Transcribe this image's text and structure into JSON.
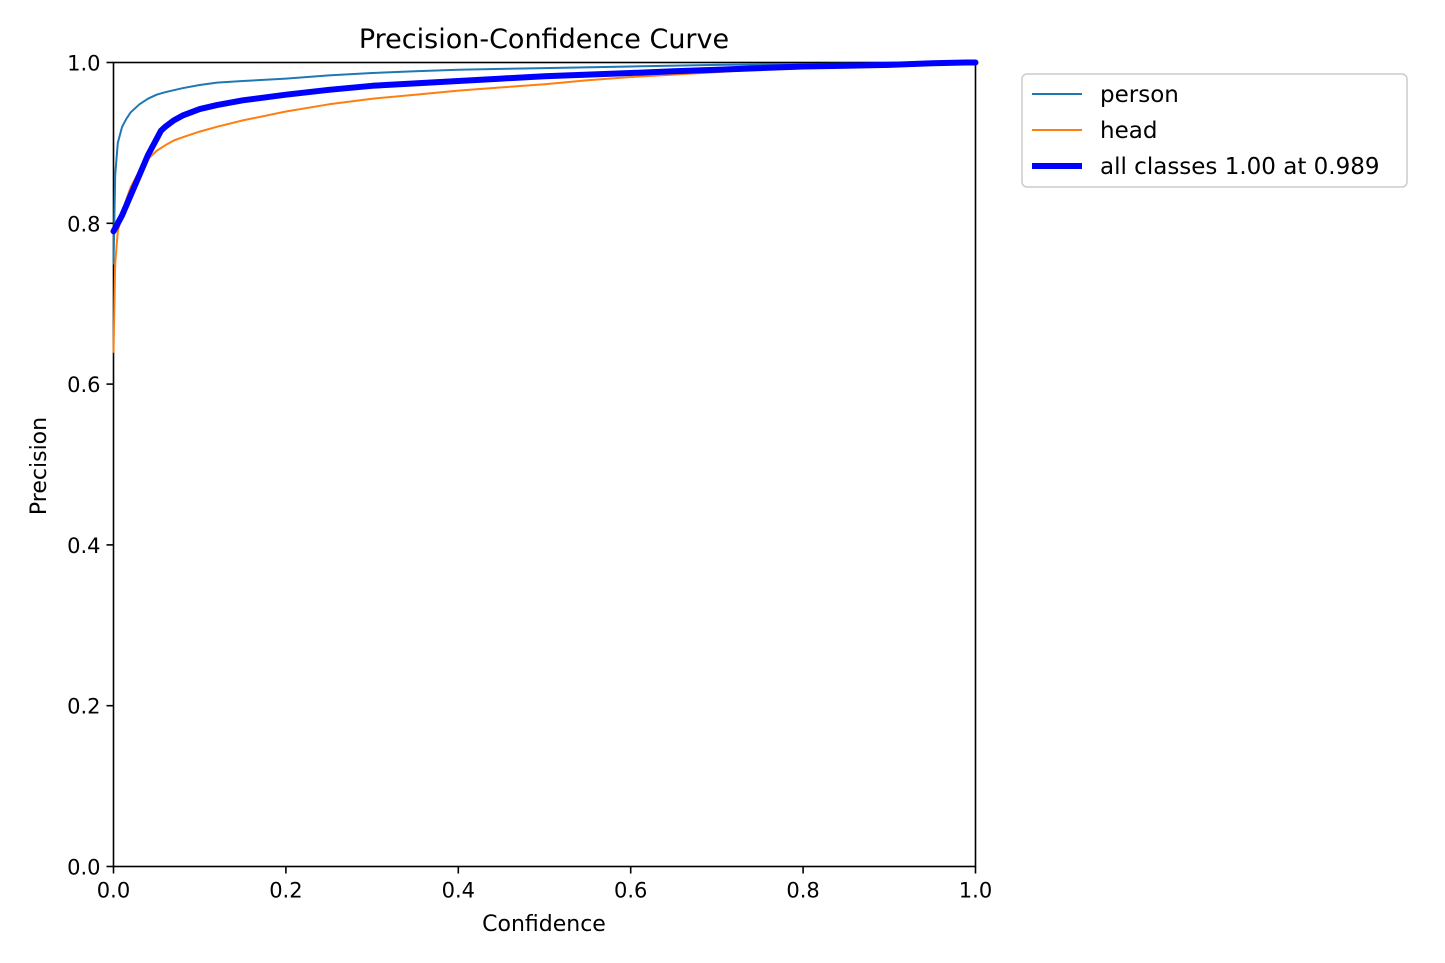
{
  "chart_data": {
    "type": "line",
    "title": "Precision-Confidence Curve",
    "xlabel": "Confidence",
    "ylabel": "Precision",
    "xlim": [
      0.0,
      1.0
    ],
    "ylim": [
      0.0,
      1.0
    ],
    "xticks": [
      "0.0",
      "0.2",
      "0.4",
      "0.6",
      "0.8",
      "1.0"
    ],
    "yticks": [
      "0.0",
      "0.2",
      "0.4",
      "0.6",
      "0.8",
      "1.0"
    ],
    "grid": false,
    "legend_position": "outside-top-right",
    "series": [
      {
        "name": "person",
        "color": "#1f77b4",
        "x": [
          0.0,
          0.002,
          0.005,
          0.01,
          0.015,
          0.02,
          0.03,
          0.04,
          0.05,
          0.06,
          0.08,
          0.1,
          0.12,
          0.15,
          0.2,
          0.25,
          0.3,
          0.35,
          0.4,
          0.45,
          0.5,
          0.6,
          0.7,
          0.8,
          0.9,
          1.0
        ],
        "y": [
          0.75,
          0.86,
          0.9,
          0.92,
          0.93,
          0.938,
          0.948,
          0.955,
          0.96,
          0.963,
          0.968,
          0.972,
          0.975,
          0.977,
          0.98,
          0.984,
          0.987,
          0.989,
          0.991,
          0.992,
          0.993,
          0.995,
          0.997,
          0.998,
          0.999,
          1.0
        ]
      },
      {
        "name": "head",
        "color": "#ff7f0e",
        "x": [
          0.0,
          0.002,
          0.005,
          0.01,
          0.015,
          0.02,
          0.03,
          0.04,
          0.05,
          0.06,
          0.07,
          0.08,
          0.1,
          0.12,
          0.15,
          0.2,
          0.25,
          0.3,
          0.35,
          0.4,
          0.45,
          0.5,
          0.55,
          0.6,
          0.65,
          0.7,
          0.73
        ],
        "y": [
          0.64,
          0.75,
          0.79,
          0.81,
          0.83,
          0.845,
          0.865,
          0.88,
          0.89,
          0.897,
          0.903,
          0.907,
          0.914,
          0.92,
          0.928,
          0.939,
          0.948,
          0.955,
          0.96,
          0.965,
          0.969,
          0.973,
          0.978,
          0.982,
          0.985,
          0.988,
          0.99
        ]
      },
      {
        "name": "all classes 1.00 at 0.989",
        "color": "#0000ff",
        "x": [
          0.0,
          0.01,
          0.02,
          0.03,
          0.04,
          0.05,
          0.055,
          0.06,
          0.07,
          0.08,
          0.1,
          0.12,
          0.15,
          0.2,
          0.25,
          0.3,
          0.35,
          0.4,
          0.45,
          0.5,
          0.55,
          0.6,
          0.65,
          0.7,
          0.75,
          0.8,
          0.85,
          0.9,
          0.95,
          0.989,
          1.0
        ],
        "y": [
          0.79,
          0.81,
          0.835,
          0.86,
          0.885,
          0.905,
          0.915,
          0.92,
          0.928,
          0.934,
          0.942,
          0.947,
          0.953,
          0.96,
          0.966,
          0.971,
          0.974,
          0.977,
          0.98,
          0.983,
          0.985,
          0.987,
          0.989,
          0.991,
          0.993,
          0.995,
          0.996,
          0.997,
          0.999,
          1.0,
          1.0
        ]
      }
    ]
  }
}
